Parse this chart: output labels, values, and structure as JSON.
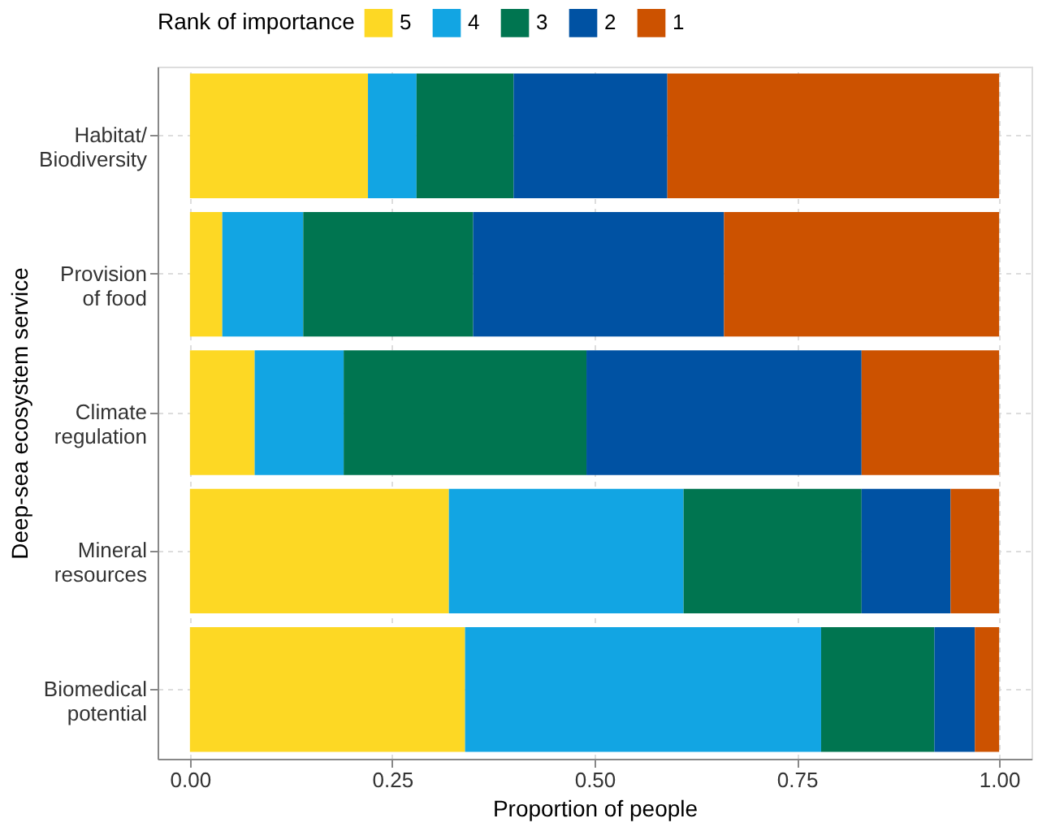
{
  "chart_data": {
    "type": "bar",
    "orientation": "horizontal",
    "stacked": true,
    "xlabel": "Proportion of people",
    "ylabel": "Deep-sea ecosystem service",
    "legend_title": "Rank of importance",
    "categories": [
      "Habitat/\nBiodiversity",
      "Provision\nof food",
      "Climate\nregulation",
      "Mineral\nresources",
      "Biomedical\npotential"
    ],
    "series": [
      {
        "name": "5",
        "color": "#fdd824",
        "values": [
          0.22,
          0.04,
          0.08,
          0.32,
          0.34
        ]
      },
      {
        "name": "4",
        "color": "#12a5e3",
        "values": [
          0.06,
          0.1,
          0.11,
          0.29,
          0.44
        ]
      },
      {
        "name": "3",
        "color": "#007550",
        "values": [
          0.12,
          0.21,
          0.3,
          0.22,
          0.14
        ]
      },
      {
        "name": "2",
        "color": "#0052a3",
        "values": [
          0.19,
          0.31,
          0.34,
          0.11,
          0.05
        ]
      },
      {
        "name": "1",
        "color": "#cc5200",
        "values": [
          0.41,
          0.34,
          0.17,
          0.06,
          0.03
        ]
      }
    ],
    "xlim": [
      -0.04,
      1.04
    ],
    "xticks": [
      {
        "value": 0,
        "label": "0.00"
      },
      {
        "value": 0.25,
        "label": "0.25"
      },
      {
        "value": 0.5,
        "label": "0.50"
      },
      {
        "value": 0.75,
        "label": "0.75"
      },
      {
        "value": 1,
        "label": "1.00"
      }
    ],
    "grid": true,
    "legend": "top"
  }
}
